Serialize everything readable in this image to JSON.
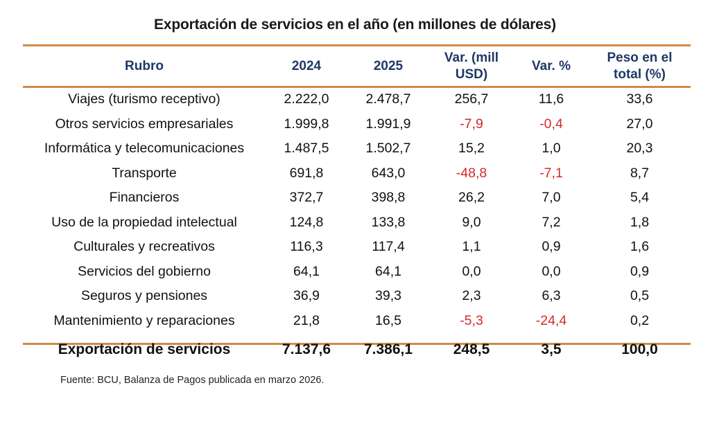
{
  "title": "Exportación de servicios en el año (en millones de dólares)",
  "colors": {
    "rule": "#d08a46",
    "header_text": "#1f3864",
    "negative": "#d42a2a"
  },
  "headers": [
    "Rubro",
    "2024",
    "2025",
    "Var. (mill USD)",
    "Var. %",
    "Peso en el total (%)"
  ],
  "rows": [
    {
      "cells": [
        "Viajes (turismo receptivo)",
        "2.222,0",
        "2.478,7",
        "256,7",
        "11,6",
        "33,6"
      ]
    },
    {
      "cells": [
        "Otros servicios empresariales",
        "1.999,8",
        "1.991,9",
        "-7,9",
        "-0,4",
        "27,0"
      ]
    },
    {
      "cells": [
        "Informática y telecomunicaciones",
        "1.487,5",
        "1.502,7",
        "15,2",
        "1,0",
        "20,3"
      ]
    },
    {
      "cells": [
        "Transporte",
        "691,8",
        "643,0",
        "-48,8",
        "-7,1",
        "8,7"
      ]
    },
    {
      "cells": [
        "Financieros",
        "372,7",
        "398,8",
        "26,2",
        "7,0",
        "5,4"
      ]
    },
    {
      "cells": [
        "Uso de la propiedad intelectual",
        "124,8",
        "133,8",
        "9,0",
        "7,2",
        "1,8"
      ]
    },
    {
      "cells": [
        "Culturales y recreativos",
        "116,3",
        "117,4",
        "1,1",
        "0,9",
        "1,6"
      ]
    },
    {
      "cells": [
        "Servicios del gobierno",
        "64,1",
        "64,1",
        "0,0",
        "0,0",
        "0,9"
      ]
    },
    {
      "cells": [
        "Seguros y pensiones",
        "36,9",
        "39,3",
        "2,3",
        "6,3",
        "0,5"
      ]
    },
    {
      "cells": [
        "Mantenimiento y reparaciones",
        "21,8",
        "16,5",
        "-5,3",
        "-24,4",
        "0,2"
      ]
    }
  ],
  "total": [
    "Exportación de servicios",
    "7.137,6",
    "7.386,1",
    "248,5",
    "3,5",
    "100,0"
  ],
  "source": "Fuente: BCU, Balanza de Pagos publicada en marzo 2026."
}
